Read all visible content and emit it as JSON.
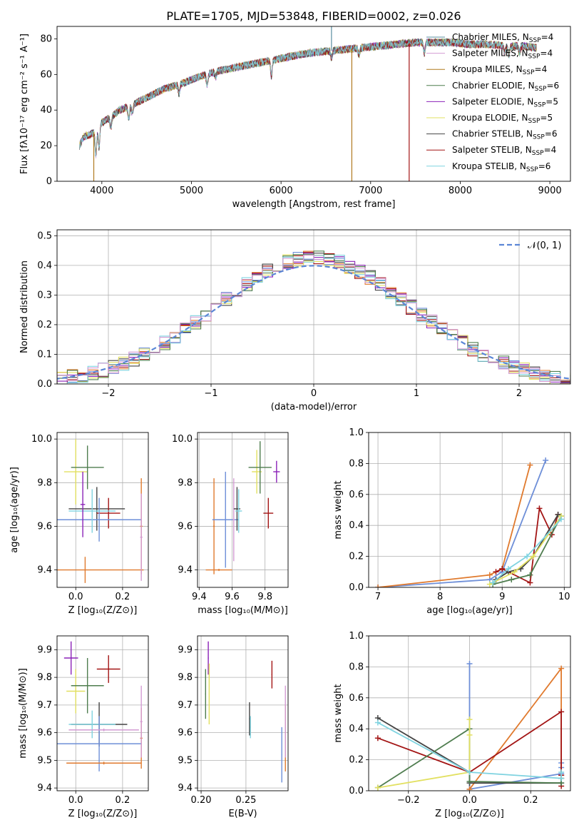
{
  "title": "PLATE=1705, MJD=53848, FIBERID=0002, z=0.026",
  "colors": {
    "Chabrier MILES": "#5a8fa0",
    "Salpeter MILES": "#d39bd3",
    "Kroupa MILES": "#b07a1f",
    "Chabrier ELODIE": "#4f7d4f",
    "Salpeter ELODIE": "#8b22b8",
    "Kroupa ELODIE": "#e2e060",
    "Chabrier STELIB": "#444444",
    "Salpeter STELIB": "#a31515",
    "Kroupa STELIB": "#7fd3e0",
    "gaussian": "#5b86d6",
    "hist_extra1": "#e07a2e",
    "hist_extra2": "#6e8fd8"
  },
  "chart_data": [
    {
      "id": "spectrum",
      "type": "line",
      "title": "PLATE=1705, MJD=53848, FIBERID=0002, z=0.026",
      "xlabel": "wavelength [Angstrom, rest frame]",
      "ylabel": "Flux [fλ10⁻¹⁷ erg cm⁻² s⁻¹ A⁻¹]",
      "xlim": [
        3500,
        9230
      ],
      "ylim": [
        0,
        87
      ],
      "xticks": [
        4000,
        5000,
        6000,
        7000,
        8000,
        9000
      ],
      "yticks": [
        0,
        20,
        40,
        60,
        80
      ],
      "grid": false,
      "legend_position": "top-right",
      "legend": [
        "Chabrier MILES, N_SSP=4",
        "Salpeter MILES, N_SSP=4",
        "Kroupa MILES, N_SSP=4",
        "Chabrier ELODIE, N_SSP=6",
        "Salpeter ELODIE, N_SSP=5",
        "Kroupa ELODIE, N_SSP=5",
        "Chabrier STELIB, N_SSP=6",
        "Salpeter STELIB, N_SSP=4",
        "Kroupa STELIB, N_SSP=6"
      ],
      "legend_names": [
        "Chabrier MILES",
        "Salpeter MILES",
        "Kroupa MILES",
        "Chabrier ELODIE",
        "Salpeter ELODIE",
        "Kroupa ELODIE",
        "Chabrier STELIB",
        "Salpeter STELIB",
        "Kroupa STELIB"
      ],
      "continuum": {
        "x": [
          3750,
          3800,
          3900,
          4000,
          4100,
          4200,
          4300,
          4500,
          4700,
          4900,
          5100,
          5300,
          5500,
          5700,
          5900,
          6100,
          6300,
          6500,
          6700,
          6900,
          7100,
          7300,
          7500,
          7700,
          7900,
          8100,
          8300,
          8500,
          8700,
          8850
        ],
        "y": [
          20,
          25,
          27,
          33,
          36,
          40,
          42,
          47,
          52,
          55,
          59,
          62,
          64,
          66,
          68,
          70,
          72,
          73,
          74,
          75,
          76,
          77,
          78,
          78,
          78,
          77,
          77,
          76,
          76,
          75
        ]
      },
      "features": [
        {
          "series": "Kroupa MILES",
          "x": 3910,
          "y": 0
        },
        {
          "series": "Kroupa MILES",
          "x": 6790,
          "y": 0
        },
        {
          "series": "Salpeter STELIB",
          "x": 7430,
          "y": 0
        },
        {
          "series": "Chabrier MILES",
          "x": 6563,
          "y": 88
        }
      ]
    },
    {
      "id": "residuals",
      "type": "bar",
      "xlabel": "(data-model)/error",
      "ylabel": "Normed distribution",
      "xlim": [
        -2.5,
        2.5
      ],
      "ylim": [
        0,
        0.52
      ],
      "xticks": [
        -2,
        -1,
        0,
        1,
        2
      ],
      "yticks": [
        0.0,
        0.1,
        0.2,
        0.3,
        0.4,
        0.5
      ],
      "grid": true,
      "legend_position": "top-right",
      "legend": [
        "𝒩(0, 1)"
      ],
      "bin_width": 0.1,
      "gaussian": {
        "mean": 0,
        "sigma": 1
      }
    },
    {
      "id": "age-vs-Z",
      "type": "scatter",
      "xlabel": "Z [log₁₀(Z/Z⊙)]",
      "ylabel": "age  [log₁₀(age/yr)]",
      "xlim": [
        -0.08,
        0.31
      ],
      "ylim": [
        9.32,
        10.03
      ],
      "xticks": [
        0.0,
        0.2
      ],
      "yticks": [
        9.4,
        9.6,
        9.8,
        10.0
      ],
      "grid": true,
      "points": [
        {
          "x": 0.0,
          "y": 9.85,
          "xerr": 0.05,
          "yerr": 0.15,
          "color": "Kroupa ELODIE"
        },
        {
          "x": 0.05,
          "y": 9.87,
          "xerr": 0.07,
          "yerr": 0.1,
          "color": "Chabrier ELODIE"
        },
        {
          "x": 0.09,
          "y": 9.68,
          "xerr": 0.12,
          "yerr": 0.1,
          "color": "Chabrier STELIB"
        },
        {
          "x": 0.14,
          "y": 9.66,
          "xerr": 0.05,
          "yerr": 0.07,
          "color": "Salpeter STELIB"
        },
        {
          "x": 0.1,
          "y": 9.63,
          "xerr": 0.18,
          "yerr": 0.1,
          "color": "hist_extra2"
        },
        {
          "x": 0.07,
          "y": 9.67,
          "xerr": 0.1,
          "yerr": 0.1,
          "color": "Kroupa STELIB"
        },
        {
          "x": 0.04,
          "y": 9.4,
          "xerr": 0.25,
          "yerr": 0.06,
          "color": "hist_extra1"
        },
        {
          "x": 0.28,
          "y": 9.6,
          "xerr": 0.005,
          "yerr": 0.22,
          "color": "hist_extra1"
        },
        {
          "x": 0.28,
          "y": 9.55,
          "xerr": 0.005,
          "yerr": 0.2,
          "color": "Salpeter MILES"
        },
        {
          "x": 0.03,
          "y": 9.7,
          "xerr": 0.01,
          "yerr": 0.15,
          "color": "Salpeter ELODIE"
        }
      ]
    },
    {
      "id": "age-vs-mass",
      "type": "scatter",
      "xlabel": "mass [log₁₀(M/M⊙)]",
      "ylabel": "",
      "xlim": [
        9.39,
        9.94
      ],
      "ylim": [
        9.32,
        10.03
      ],
      "xticks": [
        9.4,
        9.6,
        9.8
      ],
      "yticks": [
        9.4,
        9.6,
        9.8,
        10.0
      ],
      "grid": true,
      "points": [
        {
          "x": 9.49,
          "y": 9.6,
          "xerr": 0.005,
          "yerr": 0.22,
          "color": "hist_extra1"
        },
        {
          "x": 9.56,
          "y": 9.63,
          "xerr": 0.08,
          "yerr": 0.22,
          "color": "hist_extra2"
        },
        {
          "x": 9.61,
          "y": 9.63,
          "xerr": 0.005,
          "yerr": 0.19,
          "color": "Salpeter MILES"
        },
        {
          "x": 9.63,
          "y": 9.68,
          "xerr": 0.02,
          "yerr": 0.1,
          "color": "Chabrier STELIB"
        },
        {
          "x": 9.64,
          "y": 9.67,
          "xerr": 0.02,
          "yerr": 0.1,
          "color": "Kroupa STELIB"
        },
        {
          "x": 9.52,
          "y": 9.4,
          "xerr": 0.08,
          "yerr": 0.005,
          "color": "hist_extra1"
        },
        {
          "x": 9.75,
          "y": 9.85,
          "xerr": 0.03,
          "yerr": 0.1,
          "color": "Kroupa ELODIE"
        },
        {
          "x": 9.77,
          "y": 9.87,
          "xerr": 0.07,
          "yerr": 0.12,
          "color": "Chabrier ELODIE"
        },
        {
          "x": 9.82,
          "y": 9.66,
          "xerr": 0.03,
          "yerr": 0.07,
          "color": "Salpeter STELIB"
        },
        {
          "x": 9.87,
          "y": 9.85,
          "xerr": 0.02,
          "yerr": 0.05,
          "color": "Salpeter ELODIE"
        }
      ]
    },
    {
      "id": "weight-vs-age",
      "type": "line",
      "xlabel": "age  [log₁₀(age/yr)]",
      "ylabel": "mass weight",
      "xlim": [
        6.85,
        10.1
      ],
      "ylim": [
        0,
        1.0
      ],
      "xticks": [
        7,
        8,
        9,
        10
      ],
      "yticks": [
        0.0,
        0.2,
        0.4,
        0.6,
        0.8,
        1.0
      ],
      "grid": true,
      "series": [
        {
          "color": "hist_extra2",
          "x": [
            7.0,
            8.8,
            9.0,
            9.7
          ],
          "y": [
            0.0,
            0.05,
            0.1,
            0.82
          ]
        },
        {
          "color": "hist_extra1",
          "x": [
            7.0,
            8.8,
            9.0,
            9.45
          ],
          "y": [
            0.0,
            0.08,
            0.12,
            0.79
          ]
        },
        {
          "color": "Salpeter STELIB",
          "x": [
            8.9,
            9.0,
            9.45,
            9.6,
            9.8,
            9.9
          ],
          "y": [
            0.1,
            0.12,
            0.03,
            0.51,
            0.34,
            0.47
          ]
        },
        {
          "color": "Chabrier STELIB",
          "x": [
            8.9,
            9.1,
            9.3,
            9.5,
            9.9
          ],
          "y": [
            0.05,
            0.1,
            0.12,
            0.2,
            0.47
          ]
        },
        {
          "color": "Chabrier ELODIE",
          "x": [
            8.85,
            9.15,
            9.45,
            9.95
          ],
          "y": [
            0.02,
            0.05,
            0.08,
            0.46
          ]
        },
        {
          "color": "Kroupa ELODIE",
          "x": [
            8.8,
            9.2,
            9.5,
            9.95
          ],
          "y": [
            0.02,
            0.1,
            0.2,
            0.46
          ]
        },
        {
          "color": "Kroupa STELIB",
          "x": [
            8.85,
            9.1,
            9.4,
            9.95
          ],
          "y": [
            0.03,
            0.12,
            0.2,
            0.44
          ]
        }
      ]
    },
    {
      "id": "mass-vs-Z",
      "type": "scatter",
      "xlabel": "Z [log₁₀(Z/Z⊙)]",
      "ylabel": "mass [log₁₀(M/M⊙)]",
      "xlim": [
        -0.08,
        0.31
      ],
      "ylim": [
        9.39,
        9.95
      ],
      "xticks": [
        0.0,
        0.2
      ],
      "yticks": [
        9.4,
        9.5,
        9.6,
        9.7,
        9.8,
        9.9
      ],
      "grid": true,
      "points": [
        {
          "x": -0.02,
          "y": 9.87,
          "xerr": 0.03,
          "yerr": 0.06,
          "color": "Salpeter ELODIE"
        },
        {
          "x": 0.0,
          "y": 9.75,
          "xerr": 0.04,
          "yerr": 0.08,
          "color": "Kroupa ELODIE"
        },
        {
          "x": 0.05,
          "y": 9.77,
          "xerr": 0.07,
          "yerr": 0.1,
          "color": "Chabrier ELODIE"
        },
        {
          "x": 0.14,
          "y": 9.83,
          "xerr": 0.05,
          "yerr": 0.05,
          "color": "Salpeter STELIB"
        },
        {
          "x": 0.1,
          "y": 9.63,
          "xerr": 0.12,
          "yerr": 0.08,
          "color": "Chabrier STELIB"
        },
        {
          "x": 0.07,
          "y": 9.63,
          "xerr": 0.1,
          "yerr": 0.05,
          "color": "Kroupa STELIB"
        },
        {
          "x": 0.1,
          "y": 9.56,
          "xerr": 0.18,
          "yerr": 0.1,
          "color": "hist_extra2"
        },
        {
          "x": 0.12,
          "y": 9.61,
          "xerr": 0.15,
          "yerr": 0.005,
          "color": "Salpeter MILES"
        },
        {
          "x": 0.12,
          "y": 9.49,
          "xerr": 0.16,
          "yerr": 0.005,
          "color": "hist_extra1"
        },
        {
          "x": 0.28,
          "y": 9.58,
          "xerr": 0.005,
          "yerr": 0.11,
          "color": "hist_extra1"
        },
        {
          "x": 0.28,
          "y": 9.64,
          "xerr": 0.005,
          "yerr": 0.13,
          "color": "Salpeter MILES"
        }
      ]
    },
    {
      "id": "mass-vs-ebv",
      "type": "scatter",
      "xlabel": "E(B-V)",
      "ylabel": "",
      "xlim": [
        0.196,
        0.297
      ],
      "ylim": [
        9.39,
        9.95
      ],
      "xticks": [
        0.2,
        0.25
      ],
      "yticks": [
        9.4,
        9.5,
        9.6,
        9.7,
        9.8,
        9.9
      ],
      "grid": true,
      "points": [
        {
          "x": 0.205,
          "y": 9.74,
          "xerr": 0.0005,
          "yerr": 0.09,
          "color": "Chabrier ELODIE"
        },
        {
          "x": 0.208,
          "y": 9.87,
          "xerr": 0.0005,
          "yerr": 0.06,
          "color": "Salpeter ELODIE"
        },
        {
          "x": 0.209,
          "y": 9.74,
          "xerr": 0.0005,
          "yerr": 0.11,
          "color": "Kroupa ELODIE"
        },
        {
          "x": 0.254,
          "y": 9.65,
          "xerr": 0.0005,
          "yerr": 0.06,
          "color": "Chabrier STELIB"
        },
        {
          "x": 0.255,
          "y": 9.62,
          "xerr": 0.0005,
          "yerr": 0.04,
          "color": "Kroupa STELIB"
        },
        {
          "x": 0.279,
          "y": 9.81,
          "xerr": 0.0005,
          "yerr": 0.05,
          "color": "Salpeter STELIB"
        },
        {
          "x": 0.29,
          "y": 9.52,
          "xerr": 0.0005,
          "yerr": 0.1,
          "color": "hist_extra2"
        },
        {
          "x": 0.294,
          "y": 9.58,
          "xerr": 0.0005,
          "yerr": 0.12,
          "color": "hist_extra1"
        },
        {
          "x": 0.294,
          "y": 9.64,
          "xerr": 0.0005,
          "yerr": 0.13,
          "color": "Salpeter MILES"
        }
      ]
    },
    {
      "id": "weight-vs-Z",
      "type": "line",
      "xlabel": "Z [log₁₀(Z/Z⊙)]",
      "ylabel": "mass weight",
      "xlim": [
        -0.33,
        0.33
      ],
      "ylim": [
        0,
        1.0
      ],
      "xticks": [
        -0.2,
        0.0,
        0.2
      ],
      "yticks": [
        0.0,
        0.2,
        0.4,
        0.6,
        0.8,
        1.0
      ],
      "grid": true,
      "series": [
        {
          "color": "hist_extra2",
          "x": [
            0.0,
            0.0,
            0.0,
            0.3,
            0.3,
            0.3
          ],
          "y": [
            0.82,
            0.12,
            0.01,
            0.11,
            0.15,
            0.18
          ]
        },
        {
          "color": "hist_extra1",
          "x": [
            0.0,
            0.3,
            0.3,
            0.3
          ],
          "y": [
            0.01,
            0.79,
            0.1,
            0.08
          ]
        },
        {
          "color": "Salpeter STELIB",
          "x": [
            -0.3,
            0.0,
            0.3,
            0.3,
            0.3
          ],
          "y": [
            0.34,
            0.12,
            0.51,
            0.1,
            0.03
          ]
        },
        {
          "color": "Chabrier STELIB",
          "x": [
            -0.3,
            0.0,
            0.0,
            0.3
          ],
          "y": [
            0.47,
            0.12,
            0.05,
            0.05
          ]
        },
        {
          "color": "Chabrier ELODIE",
          "x": [
            -0.3,
            0.0,
            0.0,
            0.3,
            0.3
          ],
          "y": [
            0.02,
            0.4,
            0.06,
            0.05,
            0.08
          ]
        },
        {
          "color": "Kroupa ELODIE",
          "x": [
            -0.3,
            0.0,
            0.0,
            0.0
          ],
          "y": [
            0.02,
            0.12,
            0.46,
            0.36
          ]
        },
        {
          "color": "Kroupa STELIB",
          "x": [
            -0.3,
            0.0,
            0.3,
            0.3
          ],
          "y": [
            0.44,
            0.12,
            0.08,
            0.12
          ]
        }
      ]
    }
  ]
}
